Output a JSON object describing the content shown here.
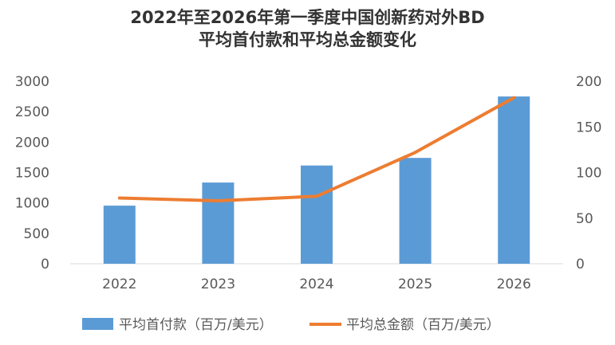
{
  "chart_data": {
    "type": "bar+line",
    "title_line1": "2022年至2026年第一季度中国创新药对外BD",
    "title_line2": "平均首付款和平均总金额变化",
    "categories": [
      "2022",
      "2023",
      "2024",
      "2025",
      "2026"
    ],
    "series": [
      {
        "name": "平均首付款（百万/美元）",
        "type": "bar",
        "axis": "left",
        "color": "#5B9BD5",
        "values": [
          955,
          1335,
          1615,
          1740,
          2750
        ]
      },
      {
        "name": "平均总金额（百万/美元）",
        "type": "line",
        "axis": "right",
        "color": "#ED7D31",
        "values": [
          72,
          69,
          74,
          122,
          182
        ]
      }
    ],
    "y_left": {
      "min": 0,
      "max": 3000,
      "ticks": [
        "0",
        "500",
        "1000",
        "1500",
        "2000",
        "2500",
        "3000"
      ]
    },
    "y_right": {
      "min": 0,
      "max": 200,
      "ticks": [
        "0",
        "50",
        "100",
        "150",
        "200"
      ]
    },
    "grid": false,
    "legend_position": "bottom"
  }
}
